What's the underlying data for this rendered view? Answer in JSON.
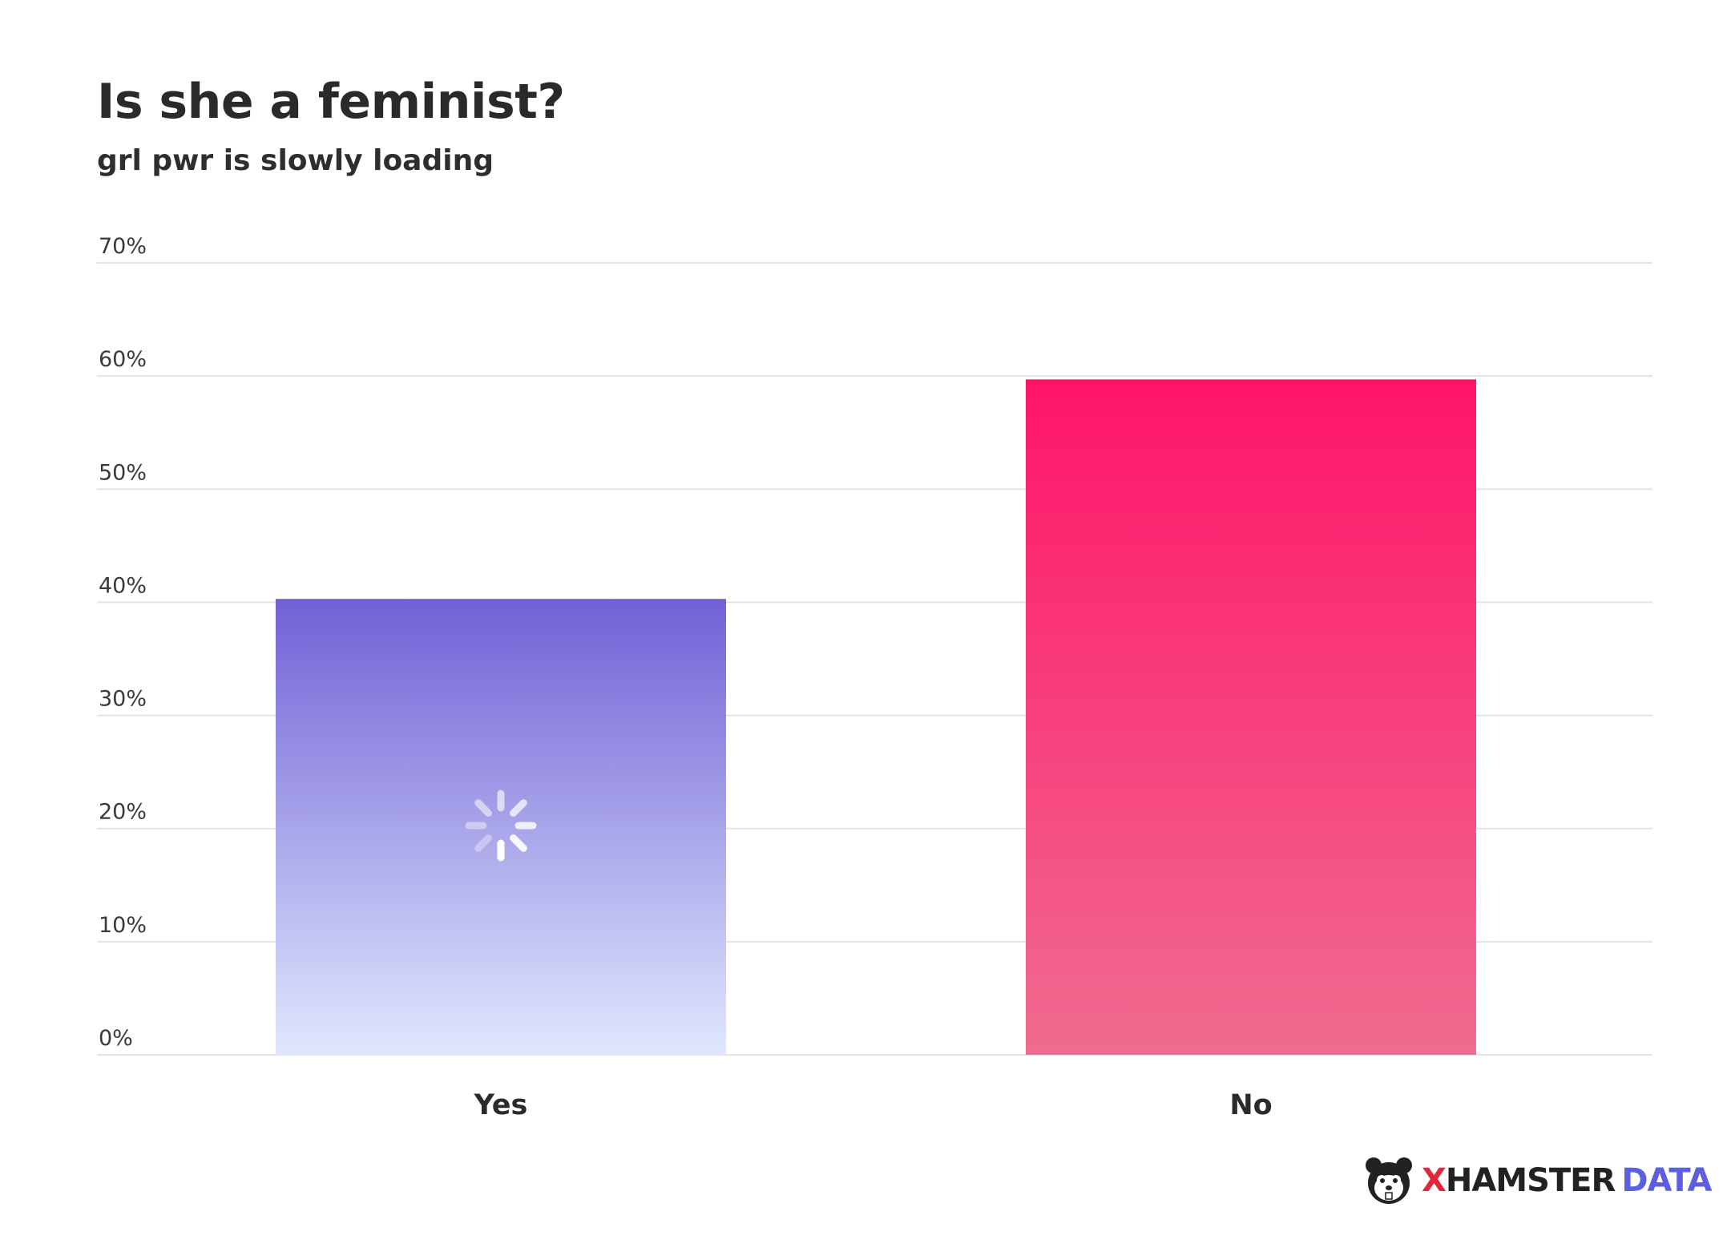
{
  "colors": {
    "yes_top": "#7161d6",
    "yes_bottom": "#dfe8fd",
    "no_top": "#ff1469",
    "no_bottom": "#f06c90",
    "grid": "#e4e4e4",
    "logo_x": "#e0283a",
    "logo_data": "#5b5fe0"
  },
  "chart_data": {
    "type": "bar",
    "title": "Is she a feminist?",
    "subtitle": "grl pwr is slowly loading",
    "categories": [
      "Yes",
      "No"
    ],
    "values": [
      40.3,
      59.7
    ],
    "ylim": [
      0,
      70
    ],
    "yticks": [
      0,
      10,
      20,
      30,
      40,
      50,
      60,
      70
    ],
    "ytick_labels": [
      "0%",
      "10%",
      "20%",
      "30%",
      "40%",
      "50%",
      "60%",
      "70%"
    ],
    "grid": true,
    "legend": "none",
    "annotations": [
      "loading-spinner over Yes bar"
    ]
  },
  "logo": {
    "x": "X",
    "hamster": "HAMSTER",
    "data": "DATA",
    "icon": "hamster-face-icon"
  }
}
